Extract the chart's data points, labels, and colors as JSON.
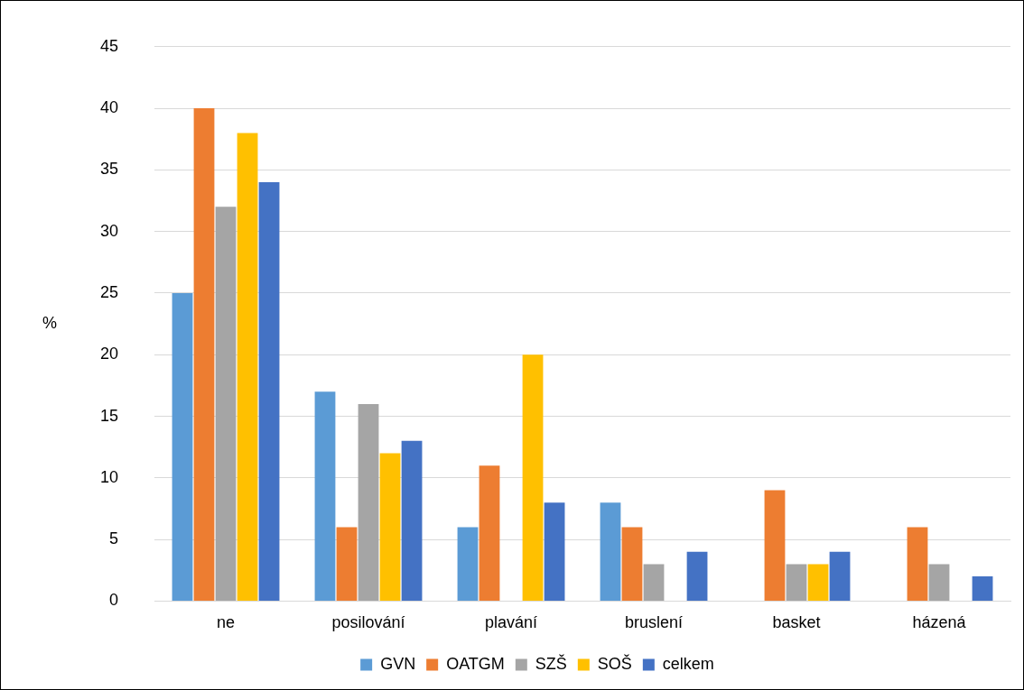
{
  "chart_data": {
    "type": "bar",
    "ylabel": "%",
    "categories": [
      "ne",
      "posilování",
      "plavání",
      "bruslení",
      "basket",
      "házená"
    ],
    "series": [
      {
        "name": "GVN",
        "color": "#5b9bd5",
        "values": [
          25,
          17,
          6,
          8,
          0,
          0
        ]
      },
      {
        "name": "OATGM",
        "color": "#ed7d31",
        "values": [
          40,
          6,
          11,
          6,
          9,
          6
        ]
      },
      {
        "name": "SZŠ",
        "color": "#a5a5a5",
        "values": [
          32,
          16,
          0,
          3,
          3,
          3
        ]
      },
      {
        "name": "SOŠ",
        "color": "#ffc000",
        "values": [
          38,
          12,
          20,
          0,
          3,
          0
        ]
      },
      {
        "name": "celkem",
        "color": "#4472c4",
        "values": [
          34,
          13,
          8,
          4,
          4,
          2
        ]
      }
    ],
    "ylim": [
      0,
      45
    ],
    "yticks": [
      0,
      5,
      10,
      15,
      20,
      25,
      30,
      35,
      40,
      45
    ],
    "grid": "y",
    "legend": "bottom"
  }
}
